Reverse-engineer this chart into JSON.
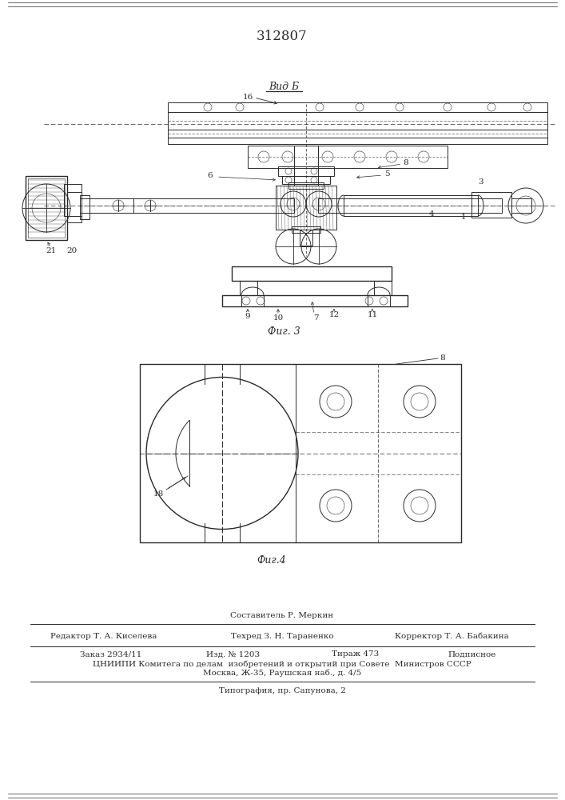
{
  "patent_number": "312807",
  "background_color": "#ffffff",
  "drawing_color": "#2a2a2a",
  "fig_width": 7.07,
  "fig_height": 10.0,
  "dpi": 100,
  "view_label": "Вид Б",
  "fig3_label": "Фиг. 3",
  "fig4_label": "Фиг.4",
  "footer_line1": "Составитель Р. Меркин",
  "footer_line2_left": "Редактор Т. А. Киселева",
  "footer_line2_mid": "Техред З. Н. Тараненко",
  "footer_line2_right": "Корректор Т. А. Бабакина",
  "footer_line3_left": "Заказ 2934/11",
  "footer_line3_mid1": "Изд. № 1203",
  "footer_line3_mid2": "Тираж 473",
  "footer_line3_right": "Подписное",
  "footer_line4": "ЦНИИПИ Комитега по делам  изобретений и открытий при Совете  Министров СССР",
  "footer_line5": "Москва, Ж-35, Раушская наб., д. 4/5",
  "footer_line6": "Типография, пр. Сапунова, 2"
}
